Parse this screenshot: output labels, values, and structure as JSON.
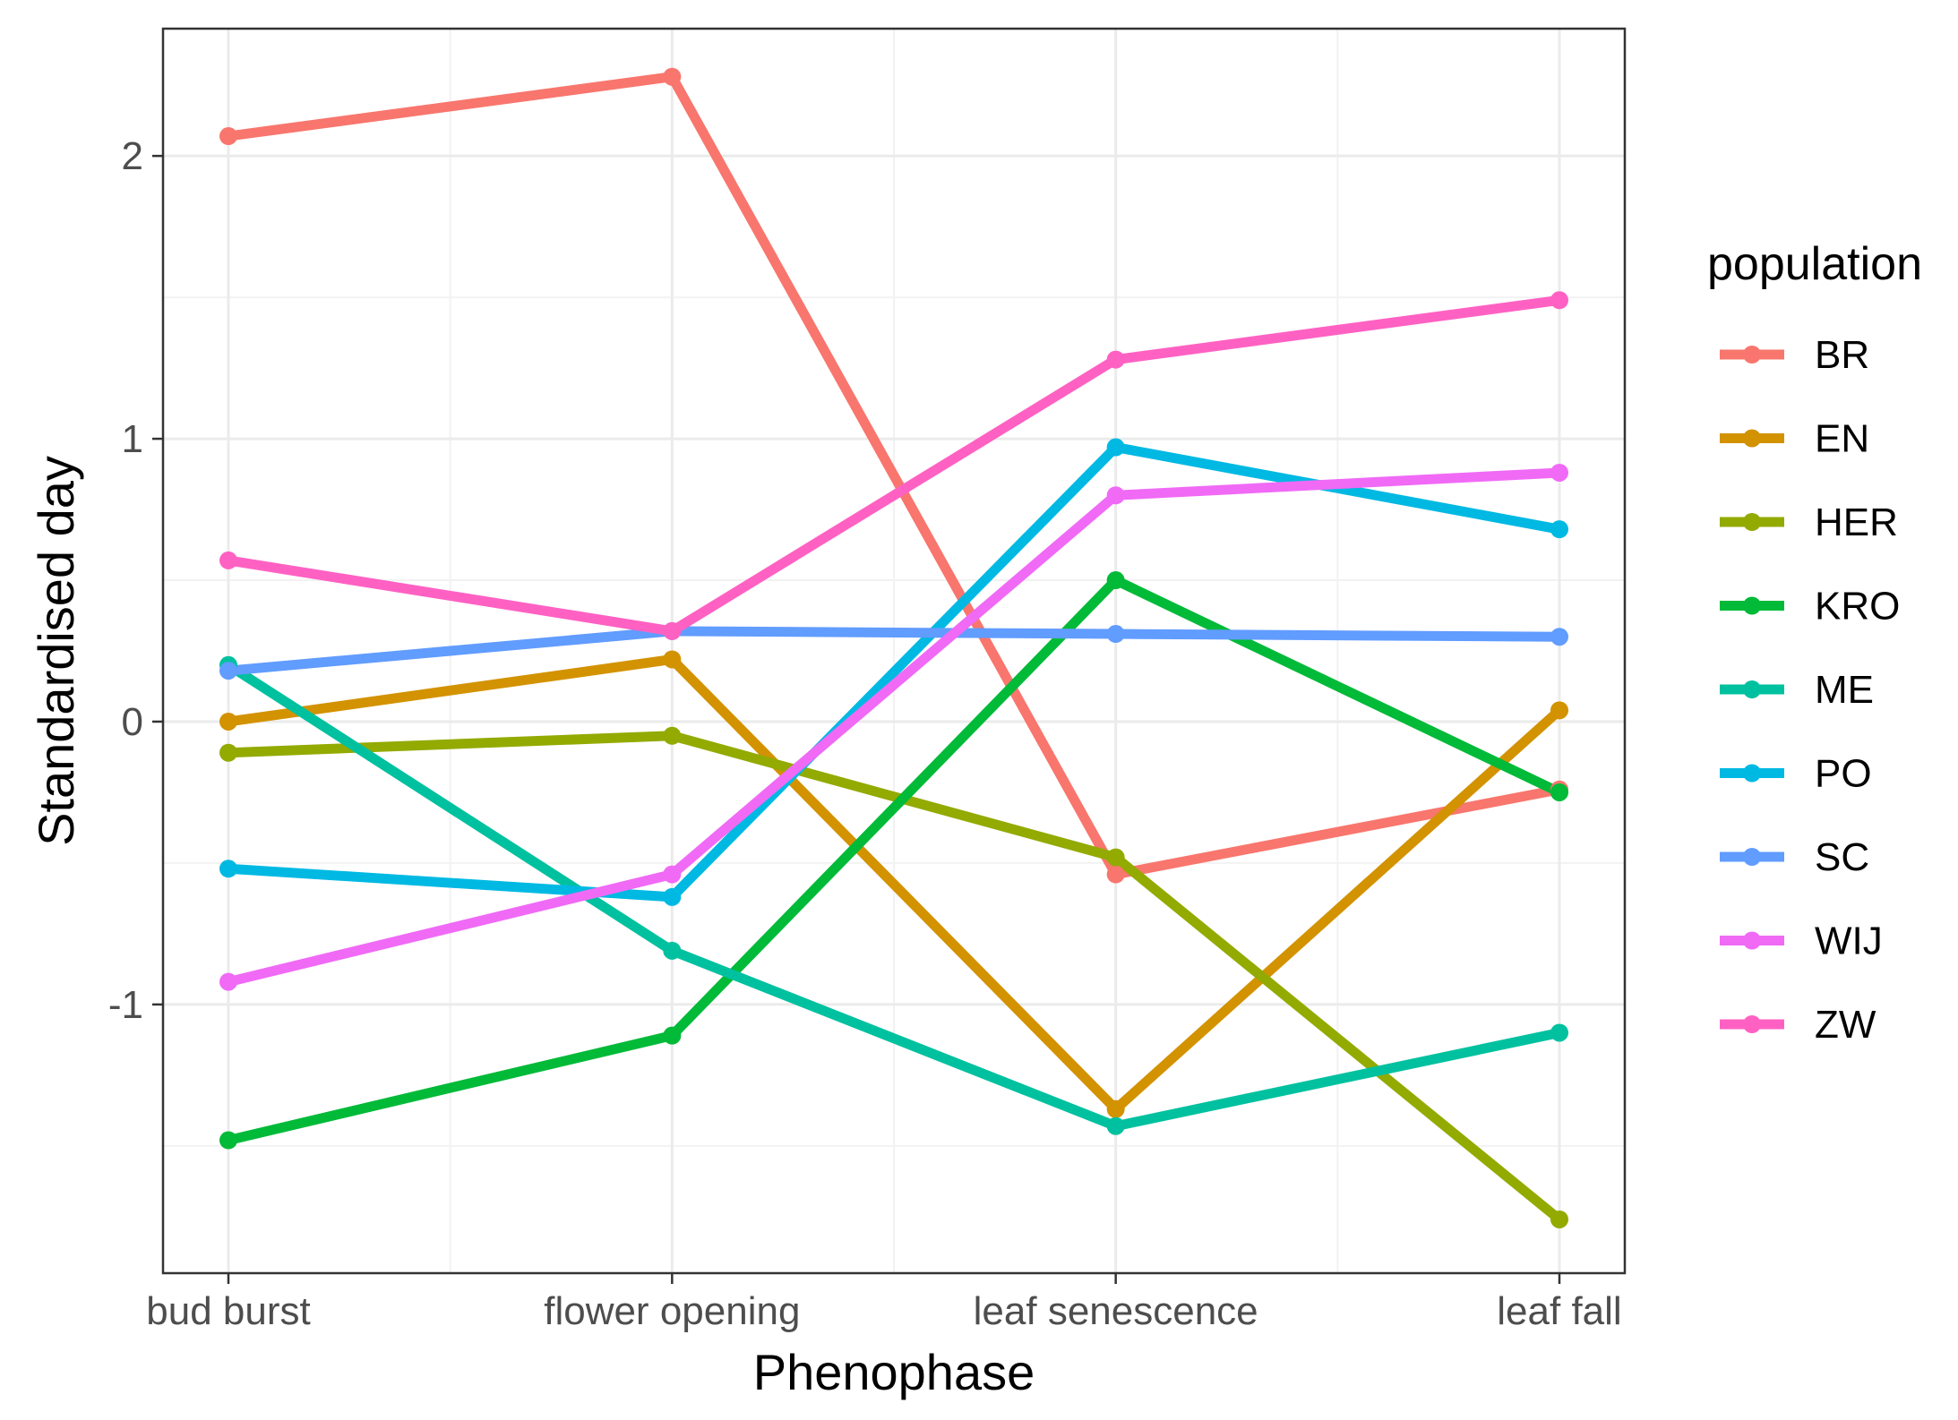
{
  "chart_data": {
    "type": "line",
    "title": "",
    "xlabel": "Phenophase",
    "ylabel": "Standardised day",
    "categories": [
      "bud burst",
      "flower opening",
      "leaf senescence",
      "leaf fall"
    ],
    "ylim": [
      -1.95,
      2.45
    ],
    "yticks": [
      -1,
      0,
      1,
      2
    ],
    "ytick_labels": [
      "-1",
      "0",
      "1",
      "2"
    ],
    "grid": true,
    "legend_title": "population",
    "legend_position": "right",
    "series": [
      {
        "name": "BR",
        "color": "#F8766D",
        "values": [
          2.07,
          2.28,
          -0.54,
          -0.24
        ]
      },
      {
        "name": "EN",
        "color": "#D39200",
        "values": [
          0.0,
          0.22,
          -1.37,
          0.04
        ]
      },
      {
        "name": "HER",
        "color": "#93AA00",
        "values": [
          -0.11,
          -0.05,
          -0.48,
          -1.76
        ]
      },
      {
        "name": "KRO",
        "color": "#00BA38",
        "values": [
          -1.48,
          -1.11,
          0.5,
          -0.25
        ]
      },
      {
        "name": "ME",
        "color": "#00C19F",
        "values": [
          0.2,
          -0.81,
          -1.43,
          -1.1
        ]
      },
      {
        "name": "PO",
        "color": "#00B9E3",
        "values": [
          -0.52,
          -0.62,
          0.97,
          0.68
        ]
      },
      {
        "name": "SC",
        "color": "#619CFF",
        "values": [
          0.18,
          0.32,
          0.31,
          0.3
        ]
      },
      {
        "name": "WIJ",
        "color": "#F06AF6",
        "values": [
          -0.92,
          -0.54,
          0.8,
          0.88
        ]
      },
      {
        "name": "ZW",
        "color": "#FF61C3",
        "values": [
          0.57,
          0.32,
          1.28,
          1.49
        ]
      }
    ]
  }
}
